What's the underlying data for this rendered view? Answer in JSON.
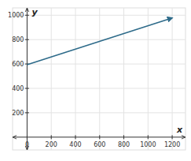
{
  "chart_data": {
    "type": "line",
    "x": [
      0,
      1200
    ],
    "values": [
      594,
      978
    ],
    "color": "#2e6b8a",
    "xlim": [
      -120,
      1310
    ],
    "ylim": [
      -105,
      1060
    ],
    "xticks": [
      0,
      200,
      400,
      600,
      800,
      1000,
      1200
    ],
    "yticks": [
      200,
      400,
      600,
      800,
      1000
    ],
    "xlabel": "x",
    "ylabel": "y",
    "grid": true
  }
}
